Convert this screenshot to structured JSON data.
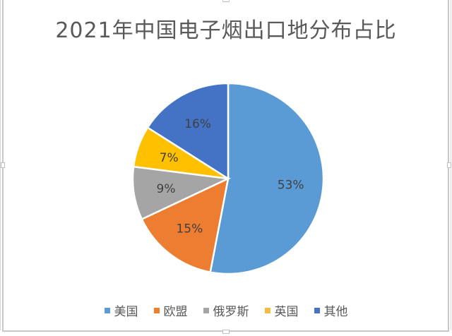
{
  "chart_data": {
    "type": "pie",
    "title": "2021年中国电子烟出口地分布占比",
    "categories": [
      "美国",
      "欧盟",
      "俄罗斯",
      "英国",
      "其他"
    ],
    "values": [
      53,
      15,
      9,
      7,
      16
    ],
    "unit": "%",
    "colors": [
      "#5b9bd5",
      "#ed7d31",
      "#a5a5a5",
      "#ffc000",
      "#4472c4"
    ],
    "data_labels": [
      "53%",
      "15%",
      "9%",
      "7%",
      "16%"
    ],
    "start_angle": "12 o'clock",
    "direction": "clockwise",
    "legend_position": "bottom"
  },
  "legend": {
    "items": [
      {
        "label": "美国",
        "color": "#5b9bd5"
      },
      {
        "label": "欧盟",
        "color": "#ed7d31"
      },
      {
        "label": "俄罗斯",
        "color": "#a5a5a5"
      },
      {
        "label": "英国",
        "color": "#f4bb41"
      },
      {
        "label": "其他",
        "color": "#4472c4"
      }
    ]
  }
}
